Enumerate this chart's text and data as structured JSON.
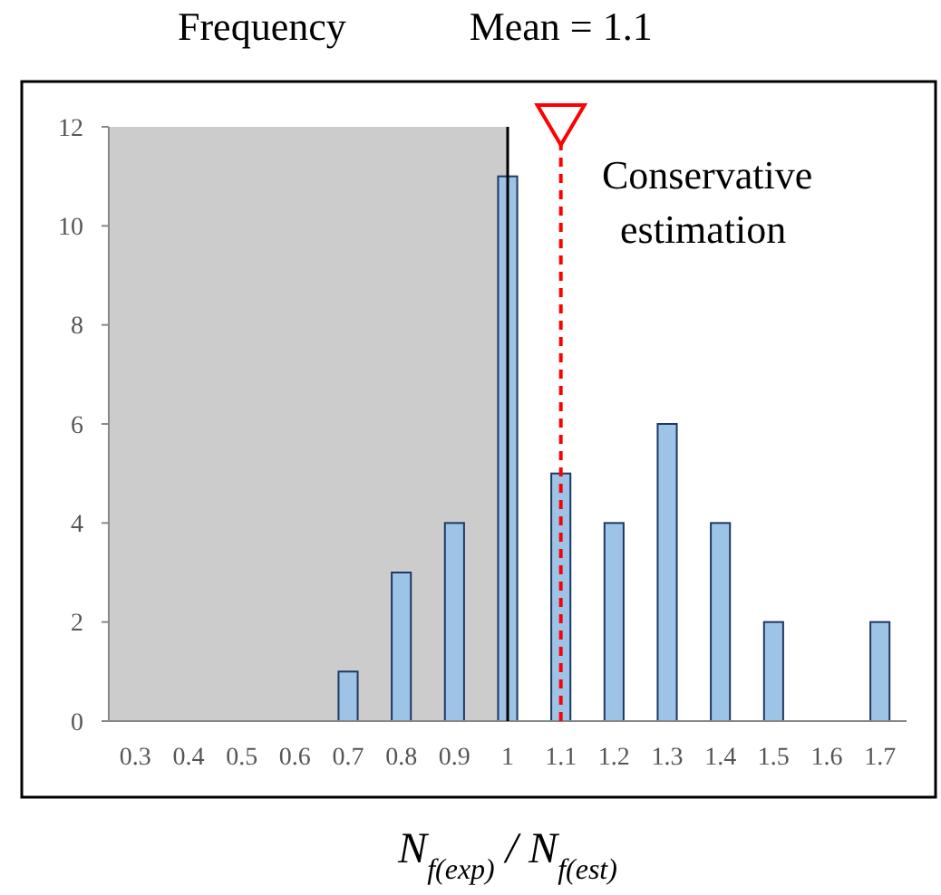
{
  "chart_data": {
    "type": "bar",
    "ylabel": "Frequency",
    "xlabel": "N$_{f(exp)}$ / N$_{f(est)}$",
    "categories": [
      "0.3",
      "0.4",
      "0.5",
      "0.6",
      "0.7",
      "0.8",
      "0.9",
      "1",
      "1.1",
      "1.2",
      "1.3",
      "1.4",
      "1.5",
      "1.6",
      "1.7"
    ],
    "values": [
      0,
      0,
      0,
      0,
      1,
      3,
      4,
      11,
      5,
      4,
      6,
      4,
      2,
      0,
      2
    ],
    "color": "#9dc3e6",
    "ylim": [
      0,
      12
    ],
    "yticks": [
      0,
      2,
      4,
      6,
      8,
      10,
      12
    ],
    "ref_lines": [
      {
        "axis": "x",
        "value": "1.1",
        "label": "Mean = 1.1",
        "color": "#ff0000",
        "line_style": "dashed"
      },
      {
        "axis": "x",
        "value": "1",
        "color": "#000000",
        "line_style": "solid"
      }
    ],
    "bands": [
      {
        "axis": "x",
        "from": "0.3",
        "to": "1",
        "color": "#cccccc"
      }
    ],
    "annotations": [
      "Conservative estimation"
    ]
  }
}
